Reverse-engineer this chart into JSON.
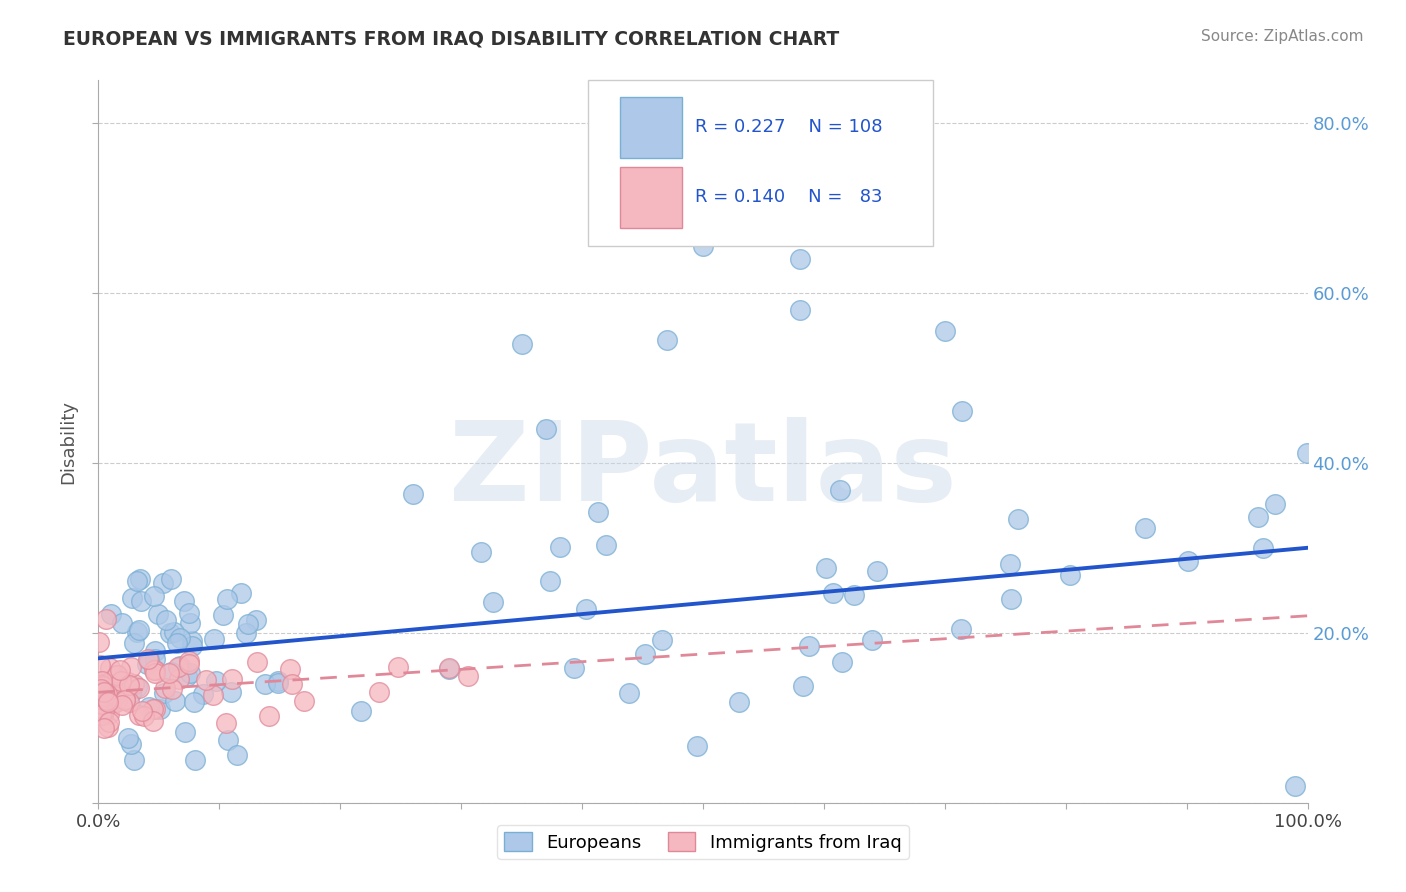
{
  "title": "EUROPEAN VS IMMIGRANTS FROM IRAQ DISABILITY CORRELATION CHART",
  "source": "Source: ZipAtlas.com",
  "ylabel": "Disability",
  "xlim": [
    0,
    1
  ],
  "ylim": [
    0,
    0.85
  ],
  "trend_blue_start": 0.17,
  "trend_blue_end": 0.3,
  "trend_pink_start": 0.13,
  "trend_pink_end": 0.22,
  "R_blue": 0.227,
  "N_blue": 108,
  "R_pink": 0.14,
  "N_pink": 83,
  "watermark": "ZIPatlas",
  "blue_face": "#adc8e8",
  "blue_edge": "#7aafd4",
  "pink_face": "#f5b8c0",
  "pink_edge": "#e08898",
  "trend_blue_color": "#2255cc",
  "trend_pink_color": "#e08898",
  "ytick_color": "#5b9bd5",
  "title_color": "#333333",
  "source_color": "#888888",
  "grid_color": "#cccccc",
  "legend_text_color": "#2255cc"
}
